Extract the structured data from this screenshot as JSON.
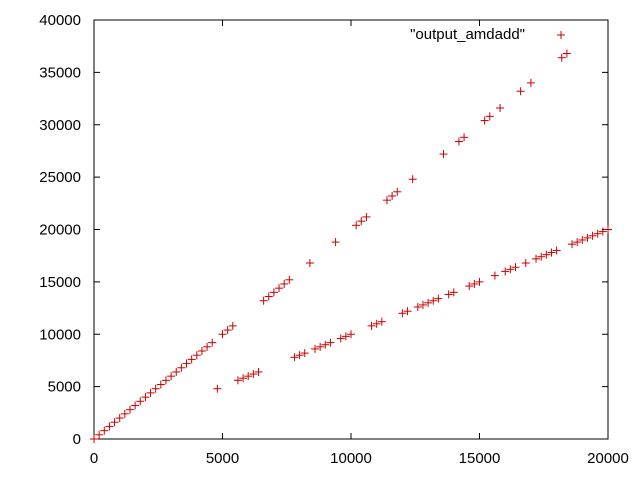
{
  "chart_data": {
    "type": "scatter",
    "title": "",
    "xlabel": "",
    "ylabel": "",
    "xlim": [
      0,
      20000
    ],
    "ylim": [
      0,
      40000
    ],
    "xticks": [
      0,
      5000,
      10000,
      15000,
      20000
    ],
    "yticks": [
      0,
      5000,
      10000,
      15000,
      20000,
      25000,
      30000,
      35000,
      40000
    ],
    "grid": false,
    "legend_position": "top-right",
    "series": [
      {
        "name": "\"output_amdadd\"",
        "color": "#cc0000",
        "marker": "plus",
        "points": [
          [
            0,
            0
          ],
          [
            200,
            400
          ],
          [
            400,
            800
          ],
          [
            600,
            1200
          ],
          [
            800,
            1600
          ],
          [
            1000,
            2000
          ],
          [
            1200,
            2400
          ],
          [
            1400,
            2800
          ],
          [
            1600,
            3200
          ],
          [
            1800,
            3600
          ],
          [
            2000,
            4000
          ],
          [
            2200,
            4400
          ],
          [
            2400,
            4800
          ],
          [
            2600,
            5200
          ],
          [
            2800,
            5600
          ],
          [
            3000,
            6000
          ],
          [
            3200,
            6400
          ],
          [
            3400,
            6800
          ],
          [
            3600,
            7200
          ],
          [
            3800,
            7600
          ],
          [
            4000,
            8000
          ],
          [
            4200,
            8400
          ],
          [
            4400,
            8800
          ],
          [
            4600,
            9200
          ],
          [
            4800,
            4800
          ],
          [
            5000,
            10000
          ],
          [
            5200,
            10400
          ],
          [
            5400,
            10800
          ],
          [
            5600,
            5600
          ],
          [
            5800,
            5800
          ],
          [
            6000,
            6000
          ],
          [
            6200,
            6200
          ],
          [
            6400,
            6400
          ],
          [
            6600,
            13200
          ],
          [
            6800,
            13600
          ],
          [
            7000,
            14000
          ],
          [
            7200,
            14400
          ],
          [
            7400,
            14800
          ],
          [
            7600,
            15200
          ],
          [
            7800,
            7800
          ],
          [
            8000,
            8000
          ],
          [
            8200,
            8200
          ],
          [
            8400,
            16800
          ],
          [
            8600,
            8600
          ],
          [
            8800,
            8800
          ],
          [
            9000,
            9000
          ],
          [
            9200,
            9200
          ],
          [
            9400,
            18800
          ],
          [
            9600,
            9600
          ],
          [
            9800,
            9800
          ],
          [
            10000,
            10000
          ],
          [
            10200,
            20400
          ],
          [
            10400,
            20800
          ],
          [
            10600,
            21200
          ],
          [
            10800,
            10800
          ],
          [
            11000,
            11000
          ],
          [
            11200,
            11200
          ],
          [
            11400,
            22800
          ],
          [
            11600,
            23200
          ],
          [
            11800,
            23600
          ],
          [
            12000,
            12000
          ],
          [
            12200,
            12200
          ],
          [
            12400,
            24800
          ],
          [
            12600,
            12600
          ],
          [
            12800,
            12800
          ],
          [
            13000,
            13000
          ],
          [
            13200,
            13200
          ],
          [
            13400,
            13400
          ],
          [
            13600,
            27200
          ],
          [
            13800,
            13800
          ],
          [
            14000,
            14000
          ],
          [
            14200,
            28400
          ],
          [
            14400,
            28800
          ],
          [
            14600,
            14600
          ],
          [
            14800,
            14800
          ],
          [
            15000,
            15000
          ],
          [
            15200,
            30400
          ],
          [
            15400,
            30800
          ],
          [
            15600,
            15600
          ],
          [
            15800,
            31600
          ],
          [
            16000,
            16000
          ],
          [
            16200,
            16200
          ],
          [
            16400,
            16400
          ],
          [
            16600,
            33200
          ],
          [
            16800,
            16800
          ],
          [
            17000,
            34000
          ],
          [
            17200,
            17200
          ],
          [
            17400,
            17400
          ],
          [
            17600,
            17600
          ],
          [
            17800,
            17800
          ],
          [
            18000,
            18000
          ],
          [
            18200,
            36400
          ],
          [
            18400,
            36800
          ],
          [
            18600,
            18600
          ],
          [
            18800,
            18800
          ],
          [
            19000,
            19000
          ],
          [
            19200,
            19200
          ],
          [
            19400,
            19400
          ],
          [
            19600,
            19600
          ],
          [
            19800,
            19800
          ],
          [
            20000,
            20000
          ]
        ]
      }
    ]
  }
}
